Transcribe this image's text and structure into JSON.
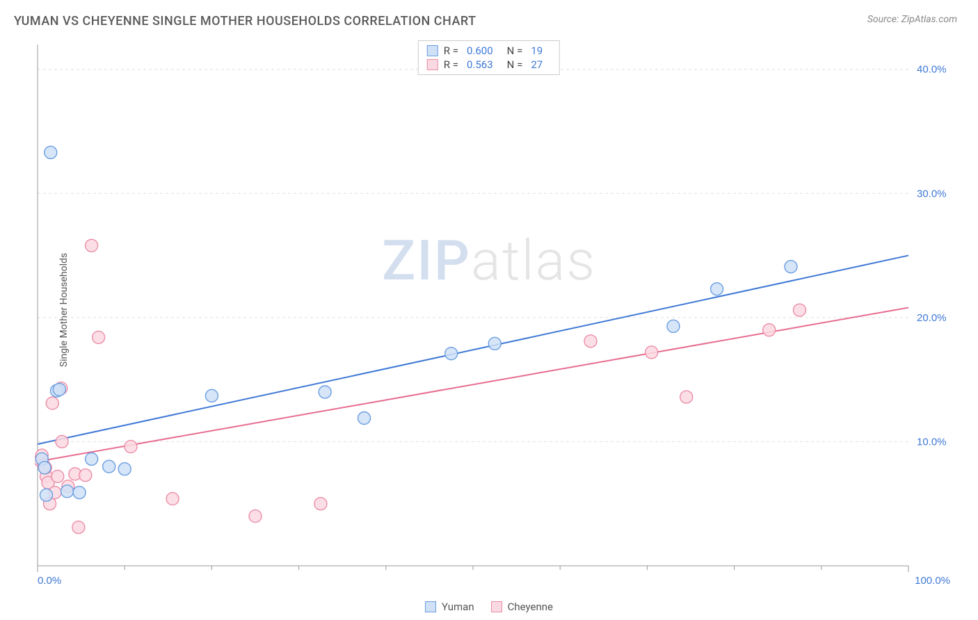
{
  "header": {
    "title": "YUMAN VS CHEYENNE SINGLE MOTHER HOUSEHOLDS CORRELATION CHART",
    "source": "Source: ZipAtlas.com"
  },
  "watermark": {
    "part1": "ZIP",
    "part2": "atlas"
  },
  "chart": {
    "type": "scatter",
    "ylabel": "Single Mother Households",
    "xlim": [
      0,
      100
    ],
    "ylim": [
      0,
      42
    ],
    "xtick_major": [
      0,
      100
    ],
    "xtick_minor": [
      10,
      20,
      30,
      40,
      50,
      60,
      70,
      80,
      90
    ],
    "ytick_labels": [
      10,
      20,
      30,
      40
    ],
    "xlabel_format": "%.1f%%",
    "ylabel_format": "%.1f%%",
    "background_color": "#ffffff",
    "grid_color": "#e0e0e0",
    "axis_color": "#999999",
    "tick_text_color": "#3e78d6",
    "axis_text_color": "#555555",
    "marker_radius": 9,
    "marker_stroke_width": 1.4,
    "line_width": 2,
    "series": [
      {
        "name": "Yuman",
        "fill_color": "#cfe0f7",
        "stroke_color": "#6a9de0",
        "line_color": "#3e78d6",
        "r_value": "0.600",
        "n_value": "19",
        "regression": {
          "x1": 0,
          "y1": 9.8,
          "x2": 100,
          "y2": 25.0
        },
        "points": [
          {
            "x": 1.5,
            "y": 33.3
          },
          {
            "x": 0.5,
            "y": 8.6
          },
          {
            "x": 0.8,
            "y": 7.9
          },
          {
            "x": 2.2,
            "y": 14.1
          },
          {
            "x": 2.5,
            "y": 14.2
          },
          {
            "x": 1.0,
            "y": 5.7
          },
          {
            "x": 3.4,
            "y": 6.0
          },
          {
            "x": 4.8,
            "y": 5.9
          },
          {
            "x": 6.2,
            "y": 8.6
          },
          {
            "x": 8.2,
            "y": 8.0
          },
          {
            "x": 10.0,
            "y": 7.8
          },
          {
            "x": 20.0,
            "y": 13.7
          },
          {
            "x": 33.0,
            "y": 14.0
          },
          {
            "x": 37.5,
            "y": 11.9
          },
          {
            "x": 47.5,
            "y": 17.1
          },
          {
            "x": 52.5,
            "y": 17.9
          },
          {
            "x": 73.0,
            "y": 19.3
          },
          {
            "x": 78.0,
            "y": 22.3
          },
          {
            "x": 86.5,
            "y": 24.1
          }
        ]
      },
      {
        "name": "Cheyenne",
        "fill_color": "#fbd9e2",
        "stroke_color": "#eb8ca6",
        "line_color": "#e76b8f",
        "r_value": "0.563",
        "n_value": "27",
        "regression": {
          "x1": 0,
          "y1": 8.4,
          "x2": 100,
          "y2": 20.8
        },
        "points": [
          {
            "x": 0.3,
            "y": 8.5
          },
          {
            "x": 0.5,
            "y": 8.9
          },
          {
            "x": 0.7,
            "y": 8.1
          },
          {
            "x": 1.0,
            "y": 7.2
          },
          {
            "x": 1.2,
            "y": 6.7
          },
          {
            "x": 1.7,
            "y": 13.1
          },
          {
            "x": 2.0,
            "y": 5.9
          },
          {
            "x": 2.3,
            "y": 7.2
          },
          {
            "x": 2.7,
            "y": 14.3
          },
          {
            "x": 2.8,
            "y": 10.0
          },
          {
            "x": 3.5,
            "y": 6.4
          },
          {
            "x": 4.3,
            "y": 7.4
          },
          {
            "x": 4.7,
            "y": 3.1
          },
          {
            "x": 5.5,
            "y": 7.3
          },
          {
            "x": 6.2,
            "y": 25.8
          },
          {
            "x": 7.0,
            "y": 18.4
          },
          {
            "x": 10.7,
            "y": 9.6
          },
          {
            "x": 15.5,
            "y": 5.4
          },
          {
            "x": 25.0,
            "y": 4.0
          },
          {
            "x": 32.5,
            "y": 5.0
          },
          {
            "x": 63.5,
            "y": 18.1
          },
          {
            "x": 70.5,
            "y": 17.2
          },
          {
            "x": 74.5,
            "y": 13.6
          },
          {
            "x": 84.0,
            "y": 19.0
          },
          {
            "x": 87.5,
            "y": 20.6
          },
          {
            "x": 0.9,
            "y": 7.9
          },
          {
            "x": 1.4,
            "y": 5.0
          }
        ]
      }
    ],
    "legend_top": {
      "r_label": "R =",
      "n_label": "N ="
    },
    "legend_bottom": [
      {
        "label": "Yuman",
        "fill": "#cfe0f7",
        "stroke": "#6a9de0"
      },
      {
        "label": "Cheyenne",
        "fill": "#fbd9e2",
        "stroke": "#eb8ca6"
      }
    ]
  }
}
